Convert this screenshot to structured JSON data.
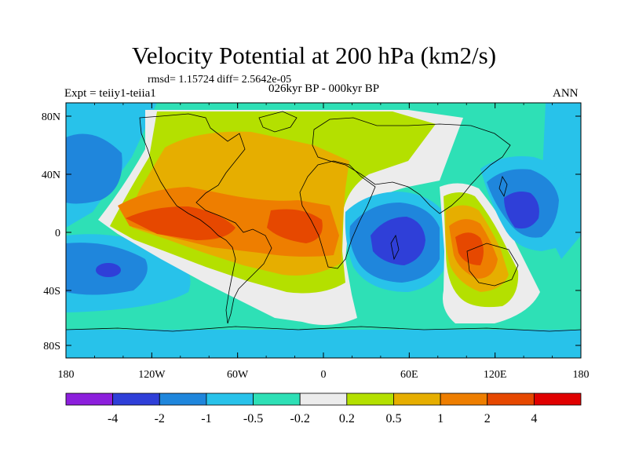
{
  "title": "Velocity Potential at 200 hPa (km2/s)",
  "stats": "rmsd= 1.15724 diff= 2.5642e-05",
  "period": "026kyr BP - 000kyr BP",
  "experiment": "Expt = teiiy1-teiia1",
  "season": "ANN",
  "axes": {
    "lon_ticks": [
      "180",
      "120W",
      "60W",
      "0",
      "60E",
      "120E",
      "180"
    ],
    "lat_ticks": [
      "80N",
      "40N",
      "0",
      "40S",
      "80S"
    ]
  },
  "colorbar": {
    "colors": [
      "#8c1fdc",
      "#2f3fd8",
      "#1f86dc",
      "#28c2ea",
      "#2ee0b6",
      "#ececec",
      "#b4e000",
      "#e6ae00",
      "#ee7e00",
      "#e64800",
      "#e00000"
    ],
    "labels": [
      "-4",
      "-2",
      "-1",
      "-0.5",
      "-0.2",
      "0.2",
      "0.5",
      "1",
      "2",
      "4"
    ]
  },
  "palette": {
    "c_m2": "#2f3fd8",
    "c_m1": "#1f86dc",
    "c_m05": "#28c2ea",
    "c_m02": "#2ee0b6",
    "c_zero": "#ececec",
    "c_p02": "#b4e000",
    "c_p05": "#e6ae00",
    "c_p1": "#ee7e00",
    "c_p2": "#e64800"
  }
}
